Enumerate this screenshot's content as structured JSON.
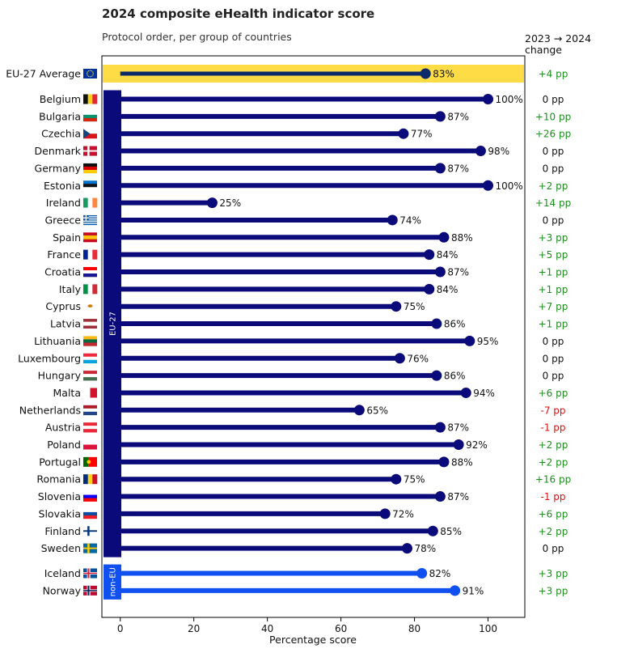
{
  "title": "2024 composite eHealth indicator score",
  "subtitle": "Protocol order, per group of countries",
  "change_header_line1": "2023 → 2024",
  "change_header_line2": "change",
  "colors": {
    "eu_bar": "#0a0a7a",
    "noneu_bar": "#1150f0",
    "avg_band": "#fddc45",
    "avg_bar": "#0a2a6a",
    "positive": "#1a8f1a",
    "negative": "#e01010",
    "neutral": "#111111"
  },
  "chart_data": {
    "type": "bar",
    "orientation": "horizontal",
    "title": "2024 composite eHealth indicator score",
    "subtitle": "Protocol order, per group of countries",
    "xlabel": "Percentage score",
    "xlim": [
      -5,
      110
    ],
    "xticks": [
      0,
      20,
      40,
      60,
      80,
      100
    ],
    "grid": false,
    "average": {
      "label": "EU-27 Average",
      "flag": "EU",
      "value": 83,
      "value_label": "83%",
      "change": "+4 pp"
    },
    "groups": [
      {
        "name": "EU-27",
        "rows": [
          {
            "label": "Belgium",
            "flag": "BE",
            "value": 100,
            "value_label": "100%",
            "change": "0 pp"
          },
          {
            "label": "Bulgaria",
            "flag": "BG",
            "value": 87,
            "value_label": "87%",
            "change": "+10 pp"
          },
          {
            "label": "Czechia",
            "flag": "CZ",
            "value": 77,
            "value_label": "77%",
            "change": "+26 pp"
          },
          {
            "label": "Denmark",
            "flag": "DK",
            "value": 98,
            "value_label": "98%",
            "change": "0 pp"
          },
          {
            "label": "Germany",
            "flag": "DE",
            "value": 87,
            "value_label": "87%",
            "change": "0 pp"
          },
          {
            "label": "Estonia",
            "flag": "EE",
            "value": 100,
            "value_label": "100%",
            "change": "+2 pp"
          },
          {
            "label": "Ireland",
            "flag": "IE",
            "value": 25,
            "value_label": "25%",
            "change": "+14 pp"
          },
          {
            "label": "Greece",
            "flag": "GR",
            "value": 74,
            "value_label": "74%",
            "change": "0 pp"
          },
          {
            "label": "Spain",
            "flag": "ES",
            "value": 88,
            "value_label": "88%",
            "change": "+3 pp"
          },
          {
            "label": "France",
            "flag": "FR",
            "value": 84,
            "value_label": "84%",
            "change": "+5 pp"
          },
          {
            "label": "Croatia",
            "flag": "HR",
            "value": 87,
            "value_label": "87%",
            "change": "+1 pp"
          },
          {
            "label": "Italy",
            "flag": "IT",
            "value": 84,
            "value_label": "84%",
            "change": "+1 pp"
          },
          {
            "label": "Cyprus",
            "flag": "CY",
            "value": 75,
            "value_label": "75%",
            "change": "+7 pp"
          },
          {
            "label": "Latvia",
            "flag": "LV",
            "value": 86,
            "value_label": "86%",
            "change": "+1 pp"
          },
          {
            "label": "Lithuania",
            "flag": "LT",
            "value": 95,
            "value_label": "95%",
            "change": "0 pp"
          },
          {
            "label": "Luxembourg",
            "flag": "LU",
            "value": 76,
            "value_label": "76%",
            "change": "0 pp"
          },
          {
            "label": "Hungary",
            "flag": "HU",
            "value": 86,
            "value_label": "86%",
            "change": "0 pp"
          },
          {
            "label": "Malta",
            "flag": "MT",
            "value": 94,
            "value_label": "94%",
            "change": "+6 pp"
          },
          {
            "label": "Netherlands",
            "flag": "NL",
            "value": 65,
            "value_label": "65%",
            "change": "-7 pp"
          },
          {
            "label": "Austria",
            "flag": "AT",
            "value": 87,
            "value_label": "87%",
            "change": "-1 pp"
          },
          {
            "label": "Poland",
            "flag": "PL",
            "value": 92,
            "value_label": "92%",
            "change": "+2 pp"
          },
          {
            "label": "Portugal",
            "flag": "PT",
            "value": 88,
            "value_label": "88%",
            "change": "+2 pp"
          },
          {
            "label": "Romania",
            "flag": "RO",
            "value": 75,
            "value_label": "75%",
            "change": "+16 pp"
          },
          {
            "label": "Slovenia",
            "flag": "SI",
            "value": 87,
            "value_label": "87%",
            "change": "-1 pp"
          },
          {
            "label": "Slovakia",
            "flag": "SK",
            "value": 72,
            "value_label": "72%",
            "change": "+6 pp"
          },
          {
            "label": "Finland",
            "flag": "FI",
            "value": 85,
            "value_label": "85%",
            "change": "+2 pp"
          },
          {
            "label": "Sweden",
            "flag": "SE",
            "value": 78,
            "value_label": "78%",
            "change": "0 pp"
          }
        ]
      },
      {
        "name": "non-EU",
        "rows": [
          {
            "label": "Iceland",
            "flag": "IS",
            "value": 82,
            "value_label": "82%",
            "change": "+3 pp"
          },
          {
            "label": "Norway",
            "flag": "NO",
            "value": 91,
            "value_label": "91%",
            "change": "+3 pp"
          }
        ]
      }
    ]
  }
}
